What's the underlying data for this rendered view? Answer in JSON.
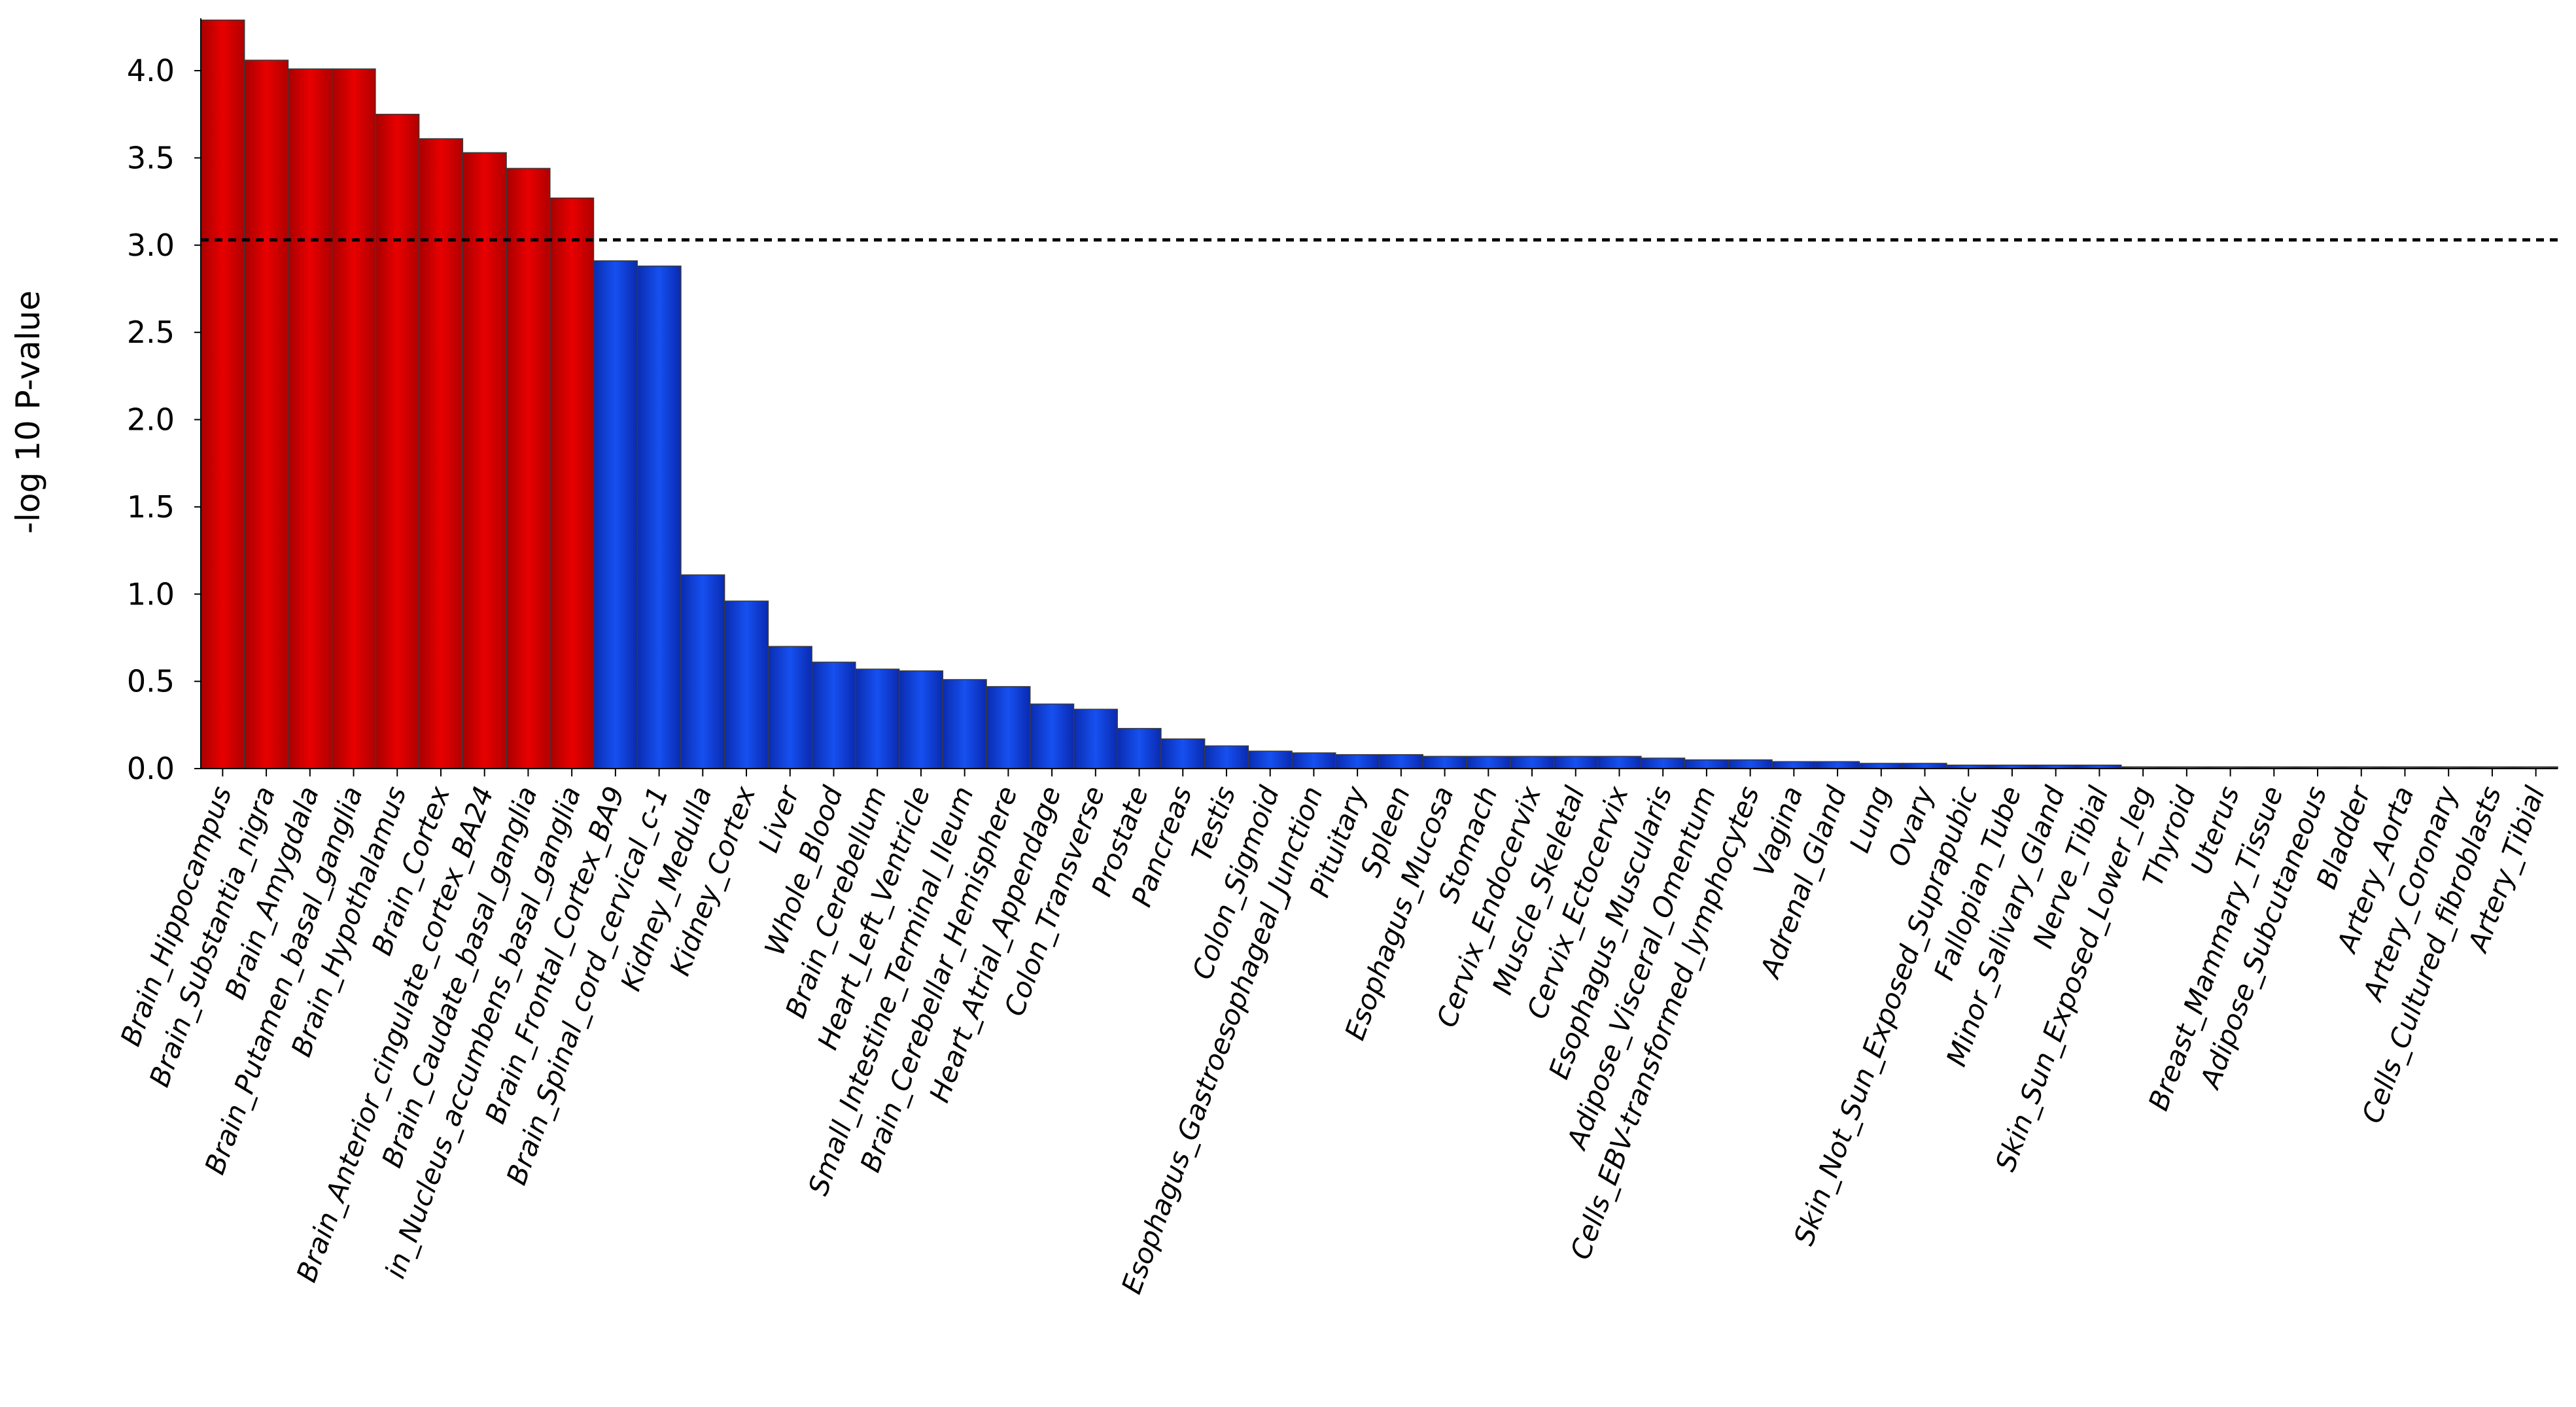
{
  "chart_data": {
    "type": "bar",
    "xlabel": "",
    "ylabel": "-log 10 P-value",
    "ylim": [
      0,
      4.3
    ],
    "yticks": [
      "0.0",
      "0.5",
      "1.0",
      "1.5",
      "2.0",
      "2.5",
      "3.0",
      "3.5",
      "4.0"
    ],
    "threshold": 3.03,
    "colors": {
      "significant": "#e10000",
      "not_significant": "#0a3ad8"
    },
    "grid": false,
    "categories": [
      "Brain_Hippocampus",
      "Brain_Substantia_nigra",
      "Brain_Amygdala",
      "Brain_Putamen_basal_ganglia",
      "Brain_Hypothalamus",
      "Brain_Cortex",
      "Brain_Anterior_cingulate_cortex_BA24",
      "Brain_Caudate_basal_ganglia",
      "in_Nucleus_accumbens_basal_ganglia",
      "Brain_Frontal_Cortex_BA9",
      "Brain_Spinal_cord_cervical_c-1",
      "Kidney_Medulla",
      "Kidney_Cortex",
      "Liver",
      "Whole_Blood",
      "Brain_Cerebellum",
      "Heart_Left_Ventricle",
      "Small_Intestine_Terminal_Ileum",
      "Brain_Cerebellar_Hemisphere",
      "Heart_Atrial_Appendage",
      "Colon_Transverse",
      "Prostate",
      "Pancreas",
      "Testis",
      "Colon_Sigmoid",
      "Esophagus_Gastroesophageal_Junction",
      "Pituitary",
      "Spleen",
      "Esophagus_Mucosa",
      "Stomach",
      "Cervix_Endocervix",
      "Muscle_Skeletal",
      "Cervix_Ectocervix",
      "Esophagus_Muscularis",
      "Adipose_Visceral_Omentum",
      "Cells_EBV-transformed_lymphocytes",
      "Vagina",
      "Adrenal_Gland",
      "Lung",
      "Ovary",
      "Skin_Not_Sun_Exposed_Suprapubic",
      "Fallopian_Tube",
      "Minor_Salivary_Gland",
      "Nerve_Tibial",
      "Skin_Sun_Exposed_Lower_leg",
      "Thyroid",
      "Uterus",
      "Breast_Mammary_Tissue",
      "Adipose_Subcutaneous",
      "Bladder",
      "Artery_Aorta",
      "Artery_Coronary",
      "Cells_Cultured_fibroblasts",
      "Artery_Tibial"
    ],
    "values": [
      4.29,
      4.06,
      4.01,
      4.01,
      3.75,
      3.61,
      3.53,
      3.44,
      3.27,
      2.91,
      2.88,
      1.11,
      0.96,
      0.7,
      0.61,
      0.57,
      0.56,
      0.51,
      0.47,
      0.37,
      0.34,
      0.23,
      0.17,
      0.13,
      0.1,
      0.09,
      0.08,
      0.08,
      0.07,
      0.07,
      0.07,
      0.07,
      0.07,
      0.06,
      0.05,
      0.05,
      0.04,
      0.04,
      0.03,
      0.03,
      0.02,
      0.02,
      0.02,
      0.02,
      0.01,
      0.01,
      0.01,
      0.01,
      0.01,
      0.01,
      0.01,
      0.01,
      0.01,
      0.01
    ],
    "significant": [
      true,
      true,
      true,
      true,
      true,
      true,
      true,
      true,
      true,
      false,
      false,
      false,
      false,
      false,
      false,
      false,
      false,
      false,
      false,
      false,
      false,
      false,
      false,
      false,
      false,
      false,
      false,
      false,
      false,
      false,
      false,
      false,
      false,
      false,
      false,
      false,
      false,
      false,
      false,
      false,
      false,
      false,
      false,
      false,
      false,
      false,
      false,
      false,
      false,
      false,
      false,
      false,
      false,
      false
    ]
  }
}
